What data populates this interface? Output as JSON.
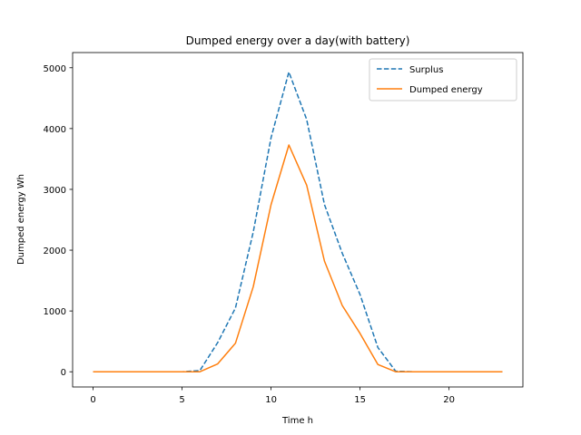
{
  "chart_data": {
    "type": "line",
    "title": "Dumped energy over a day(with battery)",
    "xlabel": "Time h",
    "ylabel": "Dumped energy Wh",
    "xlim": [
      -1.15,
      24.15
    ],
    "ylim": [
      -250,
      5250
    ],
    "xticks": [
      0,
      5,
      10,
      15,
      20
    ],
    "yticks": [
      0,
      1000,
      2000,
      3000,
      4000,
      5000
    ],
    "grid": false,
    "legend_position": "top-right",
    "x": [
      0,
      1,
      2,
      3,
      4,
      5,
      6,
      7,
      8,
      9,
      10,
      11,
      12,
      13,
      14,
      15,
      16,
      17,
      18,
      19,
      20,
      21,
      22,
      23
    ],
    "series": [
      {
        "name": "Surplus",
        "color": "#1f77b4",
        "style": "dashed",
        "values": [
          0,
          0,
          0,
          0,
          0,
          0,
          20,
          480,
          1050,
          2300,
          3850,
          4930,
          4150,
          2750,
          1950,
          1270,
          400,
          10,
          0,
          0,
          0,
          0,
          0,
          0
        ]
      },
      {
        "name": "Dumped energy",
        "color": "#ff7f0e",
        "style": "solid",
        "values": [
          0,
          0,
          0,
          0,
          0,
          0,
          0,
          130,
          470,
          1400,
          2750,
          3730,
          3070,
          1820,
          1090,
          630,
          120,
          0,
          0,
          0,
          0,
          0,
          0,
          0
        ]
      }
    ]
  }
}
